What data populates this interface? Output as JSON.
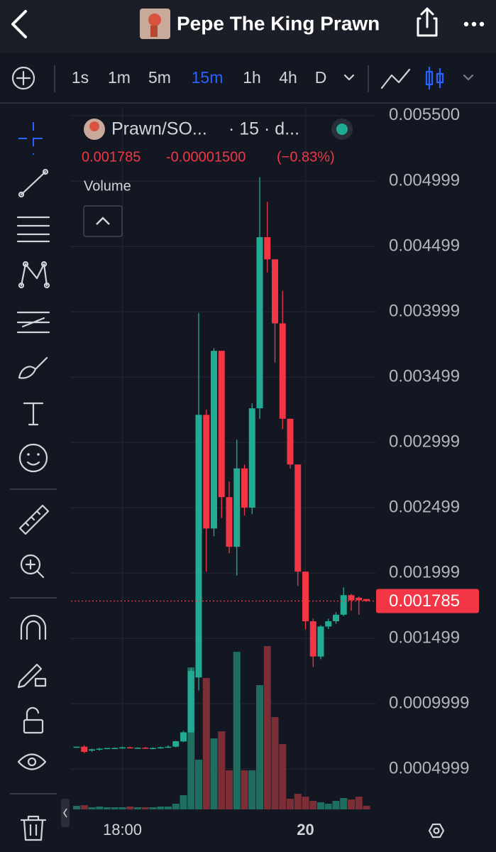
{
  "header": {
    "title": "Pepe The King Prawn"
  },
  "toolbar": {
    "intervals": [
      "1s",
      "1m",
      "5m",
      "15m",
      "1h",
      "4h",
      "D"
    ],
    "active": "15m"
  },
  "chart_data": {
    "type": "candlestick",
    "symbol": "Prawn/SO...",
    "interval_label": "· 15 · d...",
    "last_price": 0.001785,
    "change": "-0.00001500",
    "change_pct": "(−0.83%)",
    "volume_label": "Volume",
    "categories": [
      null,
      null,
      null,
      null,
      null,
      null,
      "18:00",
      null,
      null,
      null,
      null,
      null,
      null,
      null,
      null,
      null,
      null,
      null,
      null,
      null,
      null,
      null,
      null,
      null,
      null,
      null,
      null,
      null,
      null,
      null,
      "20",
      null,
      null,
      null,
      null,
      null,
      null,
      null,
      null
    ],
    "open": [
      0.000665,
      0.00067,
      0.00064,
      0.00065,
      0.000655,
      0.00066,
      0.00066,
      0.000665,
      0.00066,
      0.000662,
      0.000658,
      0.00066,
      0.000665,
      0.00067,
      0.00071,
      0.00078,
      0.0012,
      0.00321,
      0.00234,
      0.0037,
      0.00258,
      0.0022,
      0.0028,
      0.0025,
      0.00326,
      0.00457,
      0.0044,
      0.00391,
      0.00318,
      0.00283,
      0.00201,
      0.00163,
      0.00136,
      0.00159,
      0.00163,
      0.00168,
      0.00183,
      0.00181,
      0.0018
    ],
    "high": [
      0.00067,
      0.00068,
      0.000655,
      0.00066,
      0.00066,
      0.000665,
      0.00067,
      0.00067,
      0.000665,
      0.000668,
      0.000665,
      0.00067,
      0.00068,
      0.000715,
      0.00079,
      0.00127,
      0.00399,
      0.00325,
      0.00372,
      0.0037,
      0.0027,
      0.00302,
      0.00283,
      0.0033,
      0.00503,
      0.00484,
      0.0044,
      0.00416,
      0.00318,
      0.00283,
      0.00201,
      0.00165,
      0.0016,
      0.00165,
      0.0017,
      0.00189,
      0.00184,
      0.00182,
      0.0018
    ],
    "low": [
      0.00066,
      0.00062,
      0.00063,
      0.00064,
      0.00065,
      0.000655,
      0.000655,
      0.00066,
      0.000655,
      0.000655,
      0.00065,
      0.000655,
      0.00066,
      0.000665,
      0.000705,
      0.000775,
      0.0011,
      0.00201,
      0.00228,
      0.00242,
      0.00215,
      0.00198,
      0.00244,
      0.00245,
      0.00318,
      0.0043,
      0.00361,
      0.0031,
      0.0028,
      0.0019,
      0.00157,
      0.00128,
      0.00134,
      0.00157,
      0.00161,
      0.00167,
      0.00171,
      0.00168,
      0.00178
    ],
    "close": [
      0.00067,
      0.00063,
      0.00065,
      0.000655,
      0.00066,
      0.00066,
      0.000665,
      0.00066,
      0.000662,
      0.000658,
      0.00066,
      0.000665,
      0.00067,
      0.000712,
      0.00078,
      0.00125,
      0.00321,
      0.00234,
      0.0037,
      0.00258,
      0.0022,
      0.0028,
      0.0025,
      0.00326,
      0.00457,
      0.0044,
      0.00391,
      0.00318,
      0.00283,
      0.00201,
      0.00163,
      0.00136,
      0.00159,
      0.00163,
      0.00168,
      0.00183,
      0.00179,
      0.00179,
      0.001785
    ],
    "volume": [
      5,
      6,
      3,
      4,
      3,
      3,
      3,
      4,
      3,
      3,
      3,
      4,
      4,
      8,
      20,
      200,
      70,
      185,
      100,
      110,
      55,
      222,
      55,
      55,
      175,
      230,
      130,
      92,
      15,
      22,
      18,
      12,
      10,
      8,
      12,
      16,
      14,
      18,
      5
    ],
    "ylim": [
      0.00019,
      0.00557
    ],
    "vlim": [
      0,
      250
    ],
    "yticks": [
      {
        "value": 0.0055,
        "label": "0.005500"
      },
      0.004999,
      0.004499,
      0.003999,
      0.003499,
      0.002999,
      0.002499,
      0.001999,
      0.001499,
      0.0009999,
      0.0004999
    ],
    "up_color": "#22ab94",
    "down_color": "#f23645",
    "up_volume_color": "#1e6e60",
    "down_volume_color": "#7c2e37",
    "grid": true
  }
}
